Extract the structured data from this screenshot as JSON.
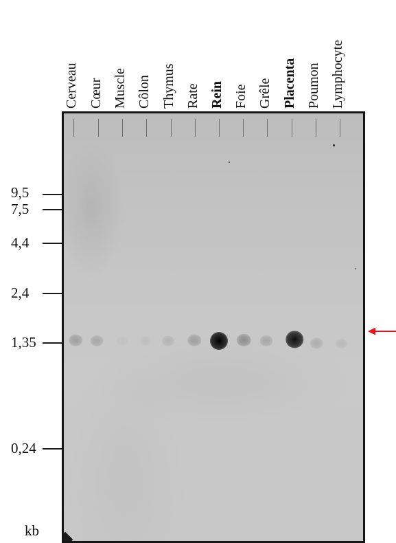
{
  "lanes": [
    {
      "label": "Cerveau",
      "bold": false
    },
    {
      "label": "Cœur",
      "bold": false
    },
    {
      "label": "Muscle",
      "bold": false
    },
    {
      "label": "Côlon",
      "bold": false
    },
    {
      "label": "Thymus",
      "bold": false
    },
    {
      "label": "Rate",
      "bold": false
    },
    {
      "label": "Rein",
      "bold": true
    },
    {
      "label": "Foie",
      "bold": false
    },
    {
      "label": "Grêle",
      "bold": false
    },
    {
      "label": "Placenta",
      "bold": true
    },
    {
      "label": "Poumon",
      "bold": false
    },
    {
      "label": "Lymphocyte",
      "bold": false
    }
  ],
  "size_markers": [
    {
      "label": "9,5"
    },
    {
      "label": "7,5"
    },
    {
      "label": "4,4"
    },
    {
      "label": "2,4"
    },
    {
      "label": "1,35"
    },
    {
      "label": "0,24"
    }
  ],
  "unit_label": "kb",
  "arrow_color": "#e8141b",
  "band_intensity": [
    0.35,
    0.3,
    0.05,
    0.08,
    0.2,
    0.35,
    1.0,
    0.45,
    0.3,
    0.95,
    0.25,
    0.15
  ]
}
